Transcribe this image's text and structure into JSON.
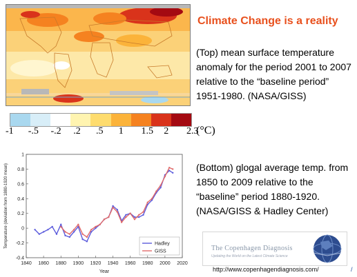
{
  "title": "Climate Change is a reality",
  "top_caption": "(Top) mean surface temperature anomaly for the period 2001 to 2007 relative to the “baseline period” 1951-1980.  (NASA/GISS)",
  "bottom_caption": "(Bottom) glogal average temp. from 1850 to 2009 relative to the “baseline” period 1880-1920.  (NASA/GISS & Hadley Center)",
  "color_scale": {
    "labels": [
      "-1",
      "-.5",
      "-.2",
      ".2",
      ".5",
      "1",
      "1.5",
      "2",
      "2.3"
    ],
    "unit": "(°C)",
    "colors": [
      "#a9d8ef",
      "#d8eef8",
      "#ffffff",
      "#fff4b0",
      "#fedc6e",
      "#fbb33a",
      "#f58220",
      "#d9331b",
      "#a40a12"
    ]
  },
  "url": "http://www.copenhagendiagnosis.com/",
  "logo": {
    "name": "The Copenhagen Diagnosis",
    "tagline": "Updating the World on the Latest Climate Science"
  },
  "corner_mark": "/",
  "chart_data": {
    "type": "line",
    "xlabel": "Year",
    "ylabel": "Temperature (deviation from 1880-1920 mean)",
    "xlim": [
      1840,
      2020
    ],
    "ylim": [
      -0.4,
      1.0
    ],
    "xticks": [
      1840,
      1860,
      1880,
      1900,
      1920,
      1940,
      1960,
      1980,
      2000,
      2020
    ],
    "yticks": [
      -0.4,
      -0.2,
      0,
      0.2,
      0.4,
      0.6,
      0.8,
      1
    ],
    "legend": "bottom-right",
    "series": [
      {
        "name": "Hadley",
        "color": "#5b5bdc",
        "x": [
          1850,
          1855,
          1860,
          1865,
          1870,
          1875,
          1880,
          1885,
          1890,
          1895,
          1900,
          1905,
          1910,
          1915,
          1920,
          1925,
          1930,
          1935,
          1940,
          1945,
          1950,
          1955,
          1960,
          1965,
          1970,
          1975,
          1980,
          1985,
          1990,
          1995,
          2000,
          2005,
          2009
        ],
        "values": [
          -0.02,
          -0.08,
          -0.05,
          -0.02,
          0.02,
          -0.08,
          0.05,
          -0.1,
          -0.12,
          -0.05,
          0.02,
          -0.15,
          -0.18,
          -0.05,
          0.0,
          0.05,
          0.12,
          0.15,
          0.3,
          0.25,
          0.1,
          0.18,
          0.2,
          0.15,
          0.15,
          0.18,
          0.32,
          0.38,
          0.48,
          0.55,
          0.72,
          0.78,
          0.75
        ]
      },
      {
        "name": "GISS",
        "color": "#e06a6a",
        "x": [
          1880,
          1885,
          1890,
          1895,
          1900,
          1905,
          1910,
          1915,
          1920,
          1925,
          1930,
          1935,
          1940,
          1945,
          1950,
          1955,
          1960,
          1965,
          1970,
          1975,
          1980,
          1985,
          1990,
          1995,
          2000,
          2005,
          2009
        ],
        "values": [
          0.02,
          -0.05,
          -0.08,
          -0.02,
          0.05,
          -0.08,
          -0.12,
          -0.02,
          0.02,
          0.05,
          0.12,
          0.15,
          0.28,
          0.22,
          0.08,
          0.15,
          0.2,
          0.12,
          0.18,
          0.22,
          0.35,
          0.4,
          0.5,
          0.58,
          0.7,
          0.82,
          0.8
        ]
      }
    ]
  }
}
